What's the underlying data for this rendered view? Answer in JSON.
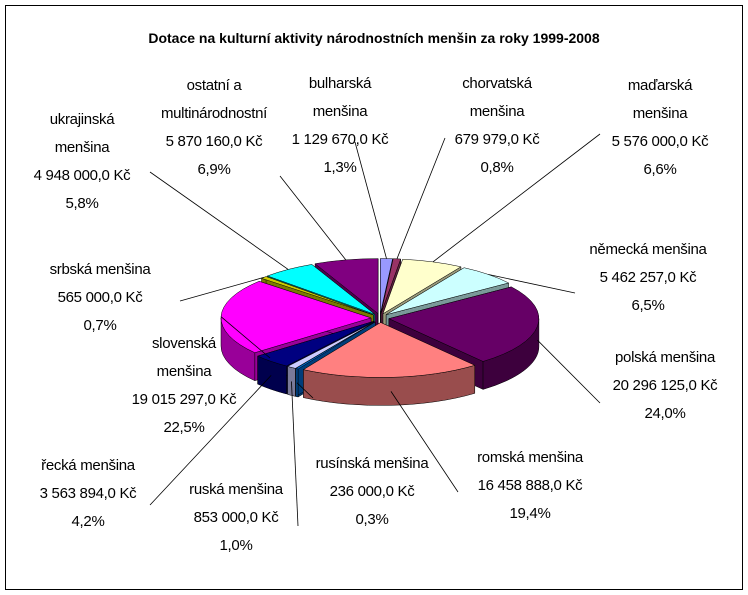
{
  "chart_data": {
    "type": "pie3d",
    "title": "Dotace na kulturní aktivity národnostních menšin za roky 1999-2008",
    "categories": [
      "bulharská menšina",
      "chorvatská menšina",
      "maďarská menšina",
      "německá menšina",
      "polská menšina",
      "romská menšina",
      "rusínská menšina",
      "ruská menšina",
      "řecká menšina",
      "slovenská menšina",
      "srbská menšina",
      "ukrajinská menšina",
      "ostatní a multinárodnostní"
    ],
    "values": [
      1.3,
      0.8,
      6.6,
      6.5,
      24.0,
      19.4,
      0.3,
      1.0,
      4.2,
      22.5,
      0.7,
      5.8,
      6.9
    ],
    "value_labels": [
      "1,3%",
      "0,8%",
      "6,6%",
      "6,5%",
      "24,0%",
      "19,4%",
      "0,3%",
      "1,0%",
      "4,2%",
      "22,5%",
      "0,7%",
      "5,8%",
      "6,9%"
    ],
    "amounts": [
      1129670,
      679979,
      5576000,
      5462257,
      20296125,
      16458888,
      236000,
      853000,
      3563894,
      19015297,
      565000,
      4948000,
      5870160
    ],
    "amount_labels": [
      "1 129 670,0 Kč",
      "679 979,0 Kč",
      "5 576 000,0 Kč",
      "5 462 257,0 Kč",
      "20 296 125,0 Kč",
      "16 458 888,0 Kč",
      "236 000,0 Kč",
      "853 000,0 Kč",
      "3 563 894,0 Kč",
      "19 015 297,0 Kč",
      "565 000,0 Kč",
      "4 948 000,0 Kč",
      "5 870 160,0 Kč"
    ],
    "colors": [
      "#9999ff",
      "#993366",
      "#ffffcc",
      "#ccffff",
      "#660066",
      "#ff8080",
      "#0066cc",
      "#ccccff",
      "#000080",
      "#ff00ff",
      "#cccc00",
      "#00ffff",
      "#800080"
    ]
  }
}
